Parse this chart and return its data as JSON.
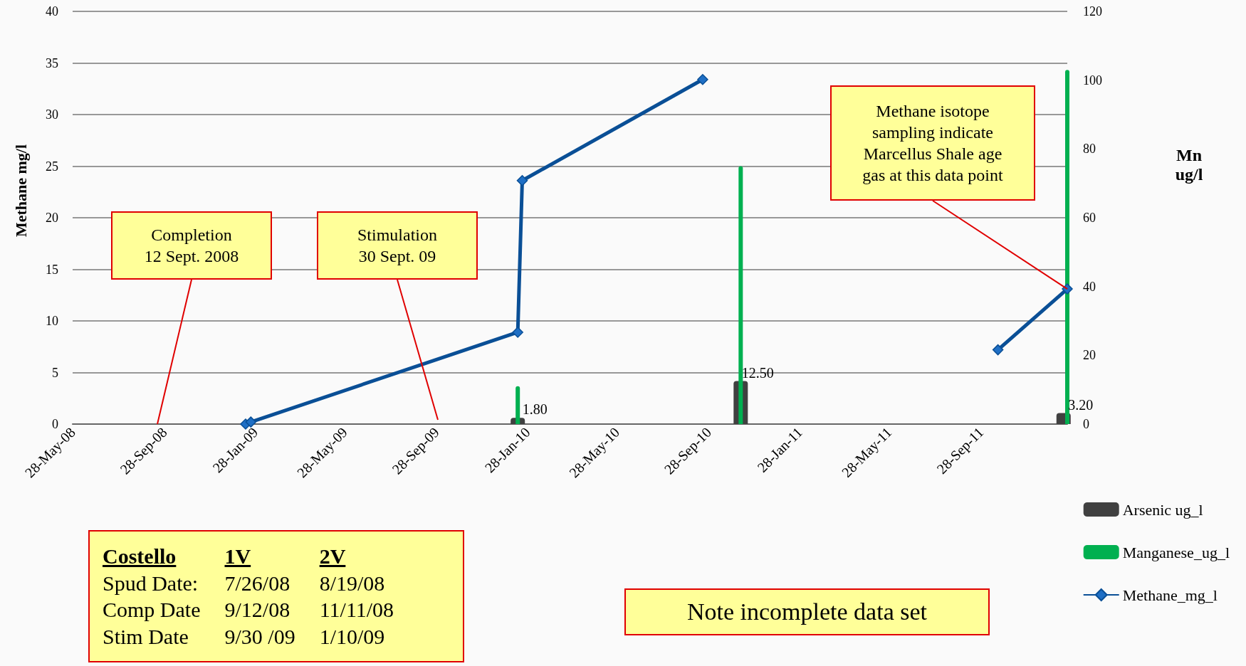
{
  "chart_data": {
    "type": "line",
    "ylabel": "Methane mg/l",
    "y2label": "Mn\nug/l",
    "xlim": [
      "2008-05-28",
      "2012-01-22"
    ],
    "xticks": [
      {
        "value": "2008-05-28",
        "label": "28-May-08"
      },
      {
        "value": "2008-09-28",
        "label": "28-Sep-08"
      },
      {
        "value": "2009-01-28",
        "label": "28-Jan-09"
      },
      {
        "value": "2009-05-28",
        "label": "28-May-09"
      },
      {
        "value": "2009-09-28",
        "label": "28-Sep-09"
      },
      {
        "value": "2010-01-28",
        "label": "28-Jan-10"
      },
      {
        "value": "2010-05-28",
        "label": "28-May-10"
      },
      {
        "value": "2010-09-28",
        "label": "28-Sep-10"
      },
      {
        "value": "2011-01-28",
        "label": "28-Jan-11"
      },
      {
        "value": "2011-05-28",
        "label": "28-May-11"
      },
      {
        "value": "2011-09-28",
        "label": "28-Sep-11"
      }
    ],
    "ylim": [
      0,
      40
    ],
    "yticks": [
      0,
      5,
      10,
      15,
      20,
      25,
      30,
      35,
      40
    ],
    "y2lim": [
      0,
      120
    ],
    "y2ticks": [
      0,
      20,
      40,
      60,
      80,
      100,
      120
    ],
    "grid": "y",
    "legend": "bottom right",
    "series": [
      {
        "name": "Arsenic ug_l",
        "type": "bar",
        "axis": "y2",
        "color": "#404040",
        "x": [
          "2010-01-15",
          "2010-11-10",
          "2012-01-17"
        ],
        "values": [
          1.8,
          12.5,
          3.2
        ],
        "value_labels": [
          "1.80",
          "12.50",
          "3.20"
        ]
      },
      {
        "name": "Manganese_ug_l",
        "type": "bar",
        "axis": "y2",
        "color": "#00b050",
        "x": [
          "2010-01-15",
          "2010-11-10",
          "2012-01-22"
        ],
        "values": [
          11,
          75,
          103
        ]
      },
      {
        "name": "Methane_mg_l",
        "color": "#0a4f96",
        "marker": "diamond",
        "x": [
          "2009-01-15",
          "2009-01-22",
          "2010-01-15",
          "2010-01-21",
          "2010-09-20",
          "2011-04-20",
          "2011-10-21",
          "2012-01-22"
        ],
        "values": [
          0,
          0.2,
          8.9,
          23.6,
          33.4,
          null,
          7.2,
          13.1
        ]
      }
    ],
    "annotations": [
      "Completion\n12 Sept. 2008",
      "Stimulation\n30 Sept. 09",
      {
        "text": "Methane isotope\nsampling indicate\nMarcellus Shale age\ngas at this data point",
        "x": "2012-01-22",
        "y": 13.1
      },
      "Costello\t1V\t2V\nSpud Date:\t7/26/08\t8/19/08\nComp Date\t9/12/08\t11/11/08\nStim Date\t9/30 /09\t1/10/09",
      "Note incomplete data set"
    ]
  }
}
